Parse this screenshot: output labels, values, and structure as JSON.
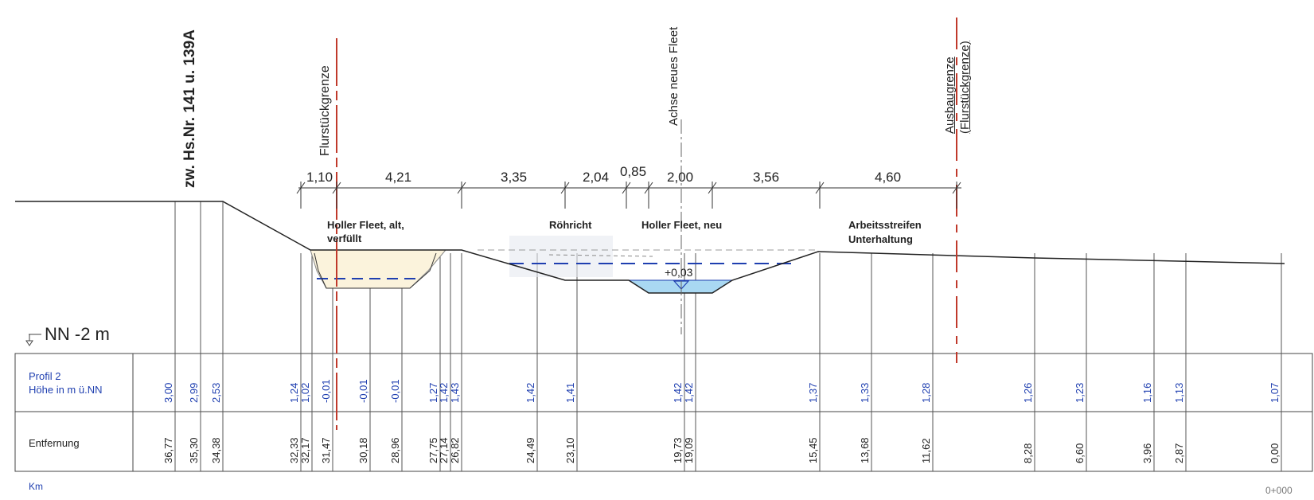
{
  "headings": {
    "house_numbers": "zw. Hs.Nr. 141 u. 139A",
    "parcel_border": "Flurstückgrenze",
    "axis_new_fleet": "Achse neues Fleet",
    "expansion_border_line1": "Ausbaugrenze",
    "expansion_border_line2": "(Flurstückgrenze)"
  },
  "zones": {
    "old_fleet_line1": "Holler Fleet, alt,",
    "old_fleet_line2": "verfüllt",
    "reed": "Röhricht",
    "new_fleet": "Holler Fleet, neu",
    "work_strip_line1": "Arbeitsstreifen",
    "work_strip_line2": "Unterhaltung"
  },
  "dimensions": [
    "1,10",
    "4,21",
    "3,35",
    "2,04",
    "0,85",
    "2,00",
    "3,56",
    "4,60"
  ],
  "water_level": "+0,03",
  "datum": "NN -2 m",
  "table": {
    "profile_label_line1": "Profil 2",
    "profile_label_line2": "Höhe in m ü.NN",
    "distance_label": "Entfernung",
    "heights": [
      "3,00",
      "2,99",
      "2,53",
      "1,24",
      "1,02",
      "-0,01",
      "-0,01",
      "-0,01",
      "1,27",
      "1,42",
      "1,43",
      "1,42",
      "1,41",
      "1,42",
      "1,42",
      "1,37",
      "1,33",
      "1,28",
      "1,26",
      "1,23",
      "1,16",
      "1,13",
      "1,07"
    ],
    "distances": [
      "36,77",
      "35,30",
      "34,38",
      "32,33",
      "32,17",
      "31,47",
      "30,18",
      "28,96",
      "27,75",
      "27,14",
      "26,82",
      "24,49",
      "23,10",
      "19,73",
      "19,09",
      "15,45",
      "13,68",
      "11,62",
      "8,28",
      "6,60",
      "3,96",
      "2,87",
      "0,00"
    ]
  },
  "footer": {
    "km_label": "Km",
    "km_value": "0+000"
  },
  "colors": {
    "ground": "#222222",
    "water_blue": "#1f3fb0",
    "water_fill": "#a9d8f2",
    "fill_old": "#fbf3dc",
    "border_red": "#c0392b"
  }
}
